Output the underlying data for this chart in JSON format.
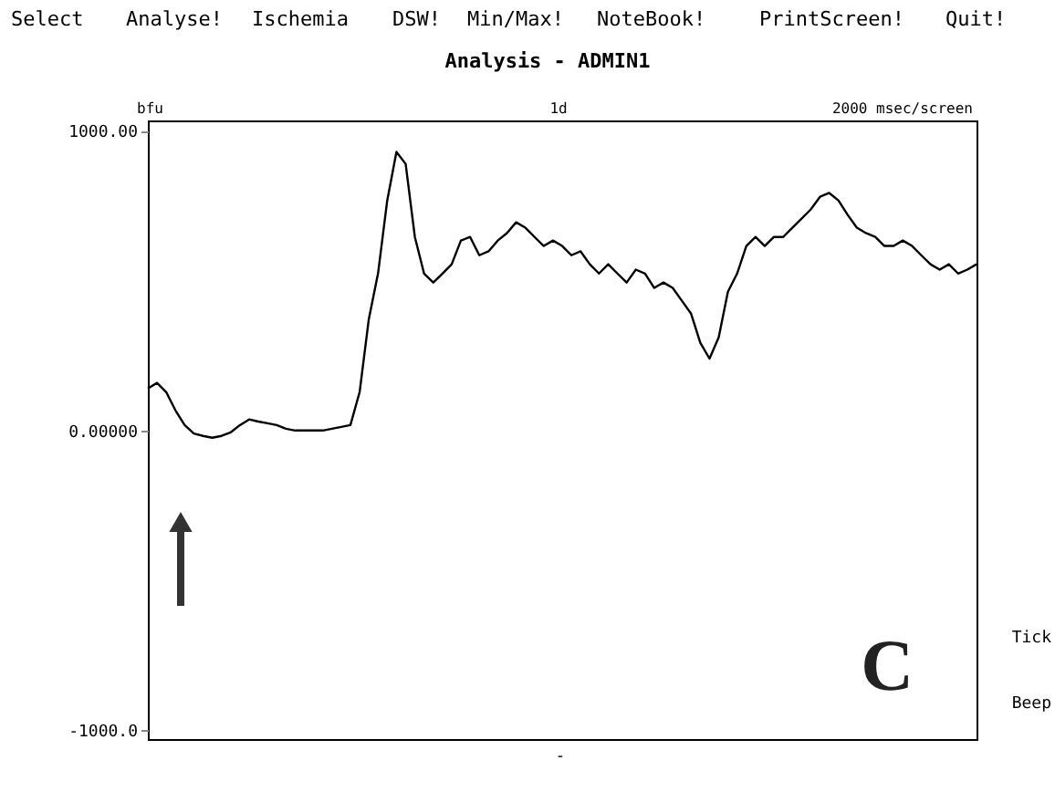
{
  "chart_data": {
    "type": "line",
    "title": "Analysis - ADMIN1",
    "categories": [
      null,
      null,
      null,
      null,
      null,
      null,
      null,
      null,
      null,
      null,
      null,
      null,
      null,
      null,
      null,
      null,
      null,
      null,
      null,
      null,
      null,
      null,
      null,
      null,
      null,
      null,
      null,
      null,
      null,
      null,
      null,
      null,
      null,
      null,
      null,
      null,
      null,
      null,
      null,
      null,
      null,
      null,
      null,
      null,
      null,
      null,
      null,
      null,
      null,
      null,
      null,
      null,
      null,
      null,
      null,
      null,
      null,
      null,
      null,
      null,
      null,
      null,
      null,
      null,
      null,
      null,
      null,
      null,
      null,
      null,
      null,
      null,
      null,
      null,
      null,
      null,
      null,
      null,
      null,
      null,
      null,
      null,
      null,
      null,
      null,
      null,
      null,
      null,
      null,
      null,
      null
    ],
    "series": [
      {
        "color": "#000000",
        "values": [
          140,
          159,
          128,
          67,
          18,
          -10,
          -18,
          -24,
          -18,
          -6,
          18,
          37,
          30,
          24,
          18,
          6,
          0,
          0,
          0,
          0,
          6,
          12,
          18,
          128,
          372,
          524,
          768,
          930,
          890,
          646,
          524,
          494,
          524,
          555,
          634,
          646,
          585,
          598,
          634,
          659,
          695,
          677,
          646,
          616,
          634,
          616,
          585,
          598,
          555,
          524,
          555,
          524,
          494,
          537,
          524,
          476,
          494,
          476,
          433,
          390,
          293,
          240,
          311,
          463,
          524,
          616,
          646,
          616,
          646,
          646,
          677,
          707,
          738,
          780,
          793,
          768,
          720,
          677,
          659,
          646,
          616,
          616,
          634,
          616,
          585,
          555,
          537,
          555,
          524,
          537,
          555
        ]
      }
    ],
    "ylim": [
      -1030,
      1035
    ],
    "yticks": [
      {
        "value": 1000,
        "label": "1000.00"
      },
      {
        "value": 0,
        "label": "0.00000"
      },
      {
        "value": -1000,
        "label": "-1000.0"
      }
    ],
    "grid": false,
    "marker": "none",
    "line_style": "solid",
    "annotations": [
      "Select",
      "Analyse!",
      "Ischemia",
      "DSW!",
      "Min/Max!",
      "NoteBook!",
      "PrintScreen!",
      "Quit!",
      "bfu",
      "1d",
      "2000 msec/screen",
      "C",
      "Tick",
      "Beep",
      "-"
    ]
  }
}
